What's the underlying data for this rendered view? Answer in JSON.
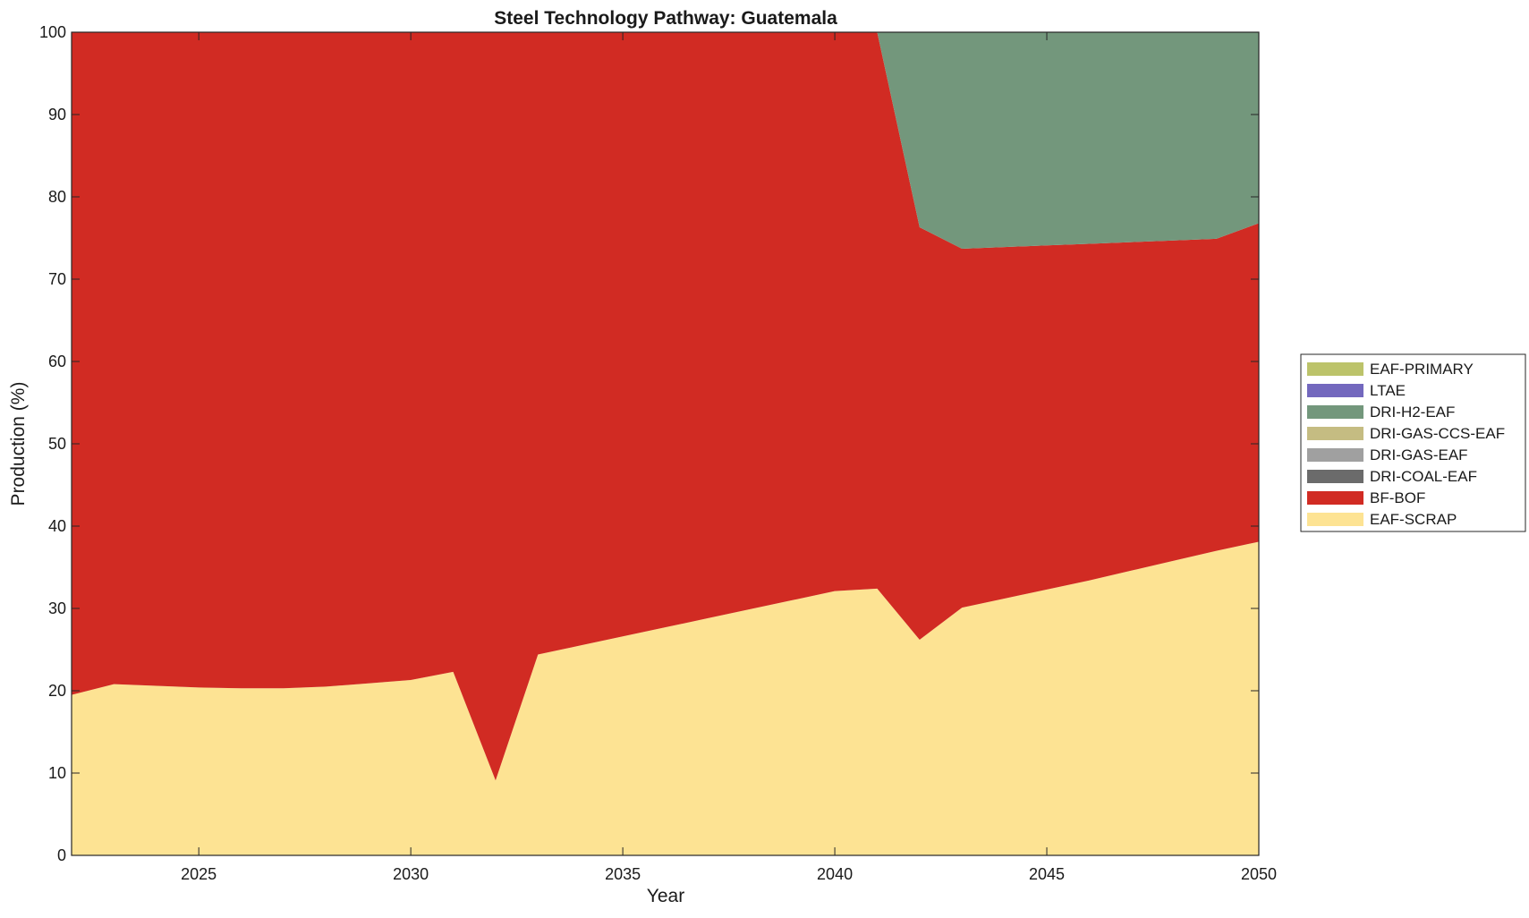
{
  "chart_data": {
    "type": "area",
    "stacked": true,
    "title": "Steel Technology Pathway: Guatemala",
    "xlabel": "Year",
    "ylabel": "Production (%)",
    "xlim": [
      2022,
      2050
    ],
    "ylim": [
      0,
      100
    ],
    "xticks": [
      2025,
      2030,
      2035,
      2040,
      2045,
      2050
    ],
    "yticks": [
      0,
      10,
      20,
      30,
      40,
      50,
      60,
      70,
      80,
      90,
      100
    ],
    "grid": false,
    "legend_position": "right",
    "x": [
      2022,
      2023,
      2024,
      2025,
      2026,
      2027,
      2028,
      2029,
      2030,
      2031,
      2032,
      2033,
      2034,
      2035,
      2036,
      2037,
      2038,
      2039,
      2040,
      2041,
      2042,
      2043,
      2044,
      2045,
      2046,
      2047,
      2048,
      2049,
      2050
    ],
    "series": [
      {
        "name": "EAF-SCRAP",
        "color": "#fde393",
        "values": [
          19.5,
          20.8,
          20.6,
          20.4,
          20.3,
          20.3,
          20.5,
          20.9,
          21.3,
          22.3,
          9.1,
          24.4,
          25.5,
          26.6,
          27.7,
          28.8,
          29.9,
          31.0,
          32.1,
          32.4,
          26.2,
          30.1,
          31.2,
          32.3,
          33.4,
          34.6,
          35.8,
          37.0,
          38.1
        ]
      },
      {
        "name": "BF-BOF",
        "color": "#d12b23",
        "values": [
          80.5,
          79.2,
          79.4,
          79.6,
          79.7,
          79.7,
          79.5,
          79.1,
          78.7,
          77.7,
          90.9,
          75.6,
          74.5,
          73.4,
          72.3,
          71.2,
          70.1,
          69.0,
          67.9,
          67.6,
          50.1,
          43.6,
          42.7,
          41.8,
          40.9,
          39.9,
          38.9,
          37.9,
          38.7
        ]
      },
      {
        "name": "DRI-COAL-EAF",
        "color": "#6b6b6b",
        "values": [
          0,
          0,
          0,
          0,
          0,
          0,
          0,
          0,
          0,
          0,
          0,
          0,
          0,
          0,
          0,
          0,
          0,
          0,
          0,
          0,
          0,
          0,
          0,
          0,
          0,
          0,
          0,
          0,
          0
        ]
      },
      {
        "name": "DRI-GAS-EAF",
        "color": "#a0a0a0",
        "values": [
          0,
          0,
          0,
          0,
          0,
          0,
          0,
          0,
          0,
          0,
          0,
          0,
          0,
          0,
          0,
          0,
          0,
          0,
          0,
          0,
          0,
          0,
          0,
          0,
          0,
          0,
          0,
          0,
          0
        ]
      },
      {
        "name": "DRI-GAS-CCS-EAF",
        "color": "#c5bc82",
        "values": [
          0,
          0,
          0,
          0,
          0,
          0,
          0,
          0,
          0,
          0,
          0,
          0,
          0,
          0,
          0,
          0,
          0,
          0,
          0,
          0,
          0,
          0,
          0,
          0,
          0,
          0,
          0,
          0,
          0
        ]
      },
      {
        "name": "DRI-H2-EAF",
        "color": "#73977c",
        "values": [
          0,
          0,
          0,
          0,
          0,
          0,
          0,
          0,
          0,
          0,
          0,
          0,
          0,
          0,
          0,
          0,
          0,
          0,
          0,
          0,
          23.7,
          26.3,
          26.1,
          25.9,
          25.7,
          25.5,
          25.3,
          25.1,
          23.2
        ]
      },
      {
        "name": "LTAE",
        "color": "#7368be",
        "values": [
          0,
          0,
          0,
          0,
          0,
          0,
          0,
          0,
          0,
          0,
          0,
          0,
          0,
          0,
          0,
          0,
          0,
          0,
          0,
          0,
          0,
          0,
          0,
          0,
          0,
          0,
          0,
          0,
          0
        ]
      },
      {
        "name": "EAF-PRIMARY",
        "color": "#bcc36a",
        "values": [
          0,
          0,
          0,
          0,
          0,
          0,
          0,
          0,
          0,
          0,
          0,
          0,
          0,
          0,
          0,
          0,
          0,
          0,
          0,
          0,
          0,
          0,
          0,
          0,
          0,
          0,
          0,
          0,
          0
        ]
      }
    ],
    "legend_order": [
      "EAF-PRIMARY",
      "LTAE",
      "DRI-H2-EAF",
      "DRI-GAS-CCS-EAF",
      "DRI-GAS-EAF",
      "DRI-COAL-EAF",
      "BF-BOF",
      "EAF-SCRAP"
    ]
  }
}
